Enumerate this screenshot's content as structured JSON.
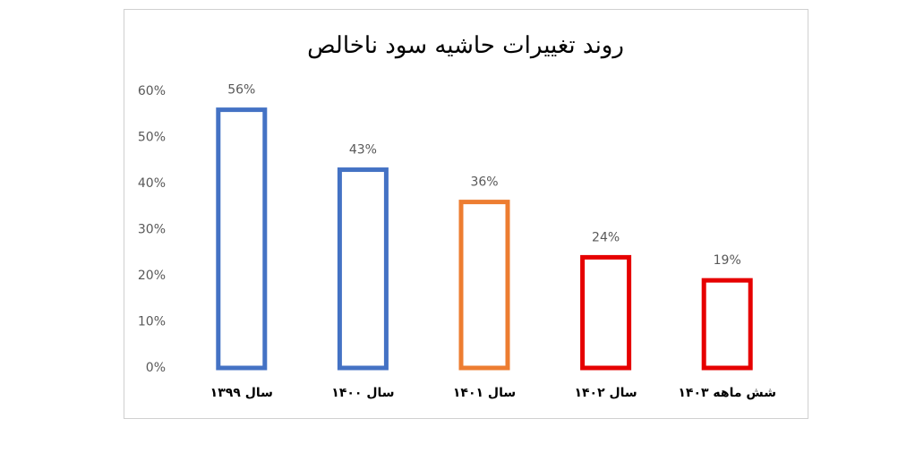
{
  "chart_data": {
    "type": "bar",
    "title": "روند تغییرات حاشیه سود ناخالص",
    "categories": [
      "سال ۱۳۹۹",
      "سال ۱۴۰۰",
      "سال ۱۴۰۱",
      "سال ۱۴۰۲",
      "شش ماهه ۱۴۰۳"
    ],
    "values": [
      56,
      43,
      36,
      24,
      19
    ],
    "value_labels": [
      "56%",
      "43%",
      "36%",
      "24%",
      "19%"
    ],
    "colors": [
      "#4472c4",
      "#4472c4",
      "#ed7d31",
      "#e60000",
      "#e60000"
    ],
    "ylim": [
      0,
      60
    ],
    "yticks": [
      {
        "value": 0,
        "label": "0%"
      },
      {
        "value": 10,
        "label": "10%"
      },
      {
        "value": 20,
        "label": "20%"
      },
      {
        "value": 30,
        "label": "30%"
      },
      {
        "value": 40,
        "label": "40%"
      },
      {
        "value": 50,
        "label": "50%"
      },
      {
        "value": 60,
        "label": "60%"
      }
    ],
    "grid": false
  }
}
